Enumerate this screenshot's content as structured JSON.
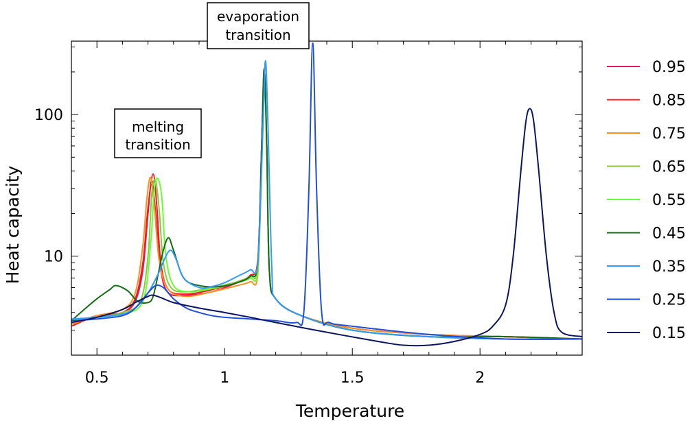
{
  "chart_data": {
    "type": "line",
    "title": "",
    "xlabel": "Temperature",
    "ylabel": "Heat capacity",
    "yscale": "log",
    "xlim": [
      0.4,
      2.4
    ],
    "ylim": [
      2.0,
      330
    ],
    "xticks": [
      {
        "value": 0.5,
        "label": "0.5"
      },
      {
        "value": 1.0,
        "label": "1"
      },
      {
        "value": 1.5,
        "label": "1.5"
      },
      {
        "value": 2.0,
        "label": "2"
      }
    ],
    "yticks": [
      {
        "value": 10,
        "label": "10"
      },
      {
        "value": 100,
        "label": "100"
      }
    ],
    "grid": false,
    "legend_position": "right",
    "annotations": [
      {
        "id": "melting",
        "lines": [
          "melting",
          "transition"
        ]
      },
      {
        "id": "evaporation",
        "lines": [
          "evaporation",
          "transition"
        ]
      }
    ],
    "series": [
      {
        "name": "0.95",
        "color": "#e8175d",
        "x": [
          0.4,
          0.5,
          0.6,
          0.65,
          0.68,
          0.7,
          0.715,
          0.73,
          0.75,
          0.78,
          0.85,
          0.95,
          1.05,
          1.1,
          1.13,
          1.145,
          1.155,
          1.165,
          1.175,
          1.2,
          1.3,
          1.5,
          1.8,
          2.1,
          2.4
        ],
        "y": [
          3.3,
          3.8,
          4.0,
          4.8,
          8.0,
          20,
          34,
          20,
          8.0,
          5.5,
          5.3,
          5.6,
          6.5,
          7.2,
          9.0,
          60,
          200,
          60,
          8.0,
          5.0,
          3.8,
          3.1,
          2.8,
          2.7,
          2.6
        ]
      },
      {
        "name": "0.85",
        "color": "#ee1c25",
        "x": [
          0.4,
          0.5,
          0.6,
          0.65,
          0.68,
          0.7,
          0.72,
          0.735,
          0.75,
          0.78,
          0.85,
          0.95,
          1.05,
          1.1,
          1.13,
          1.145,
          1.155,
          1.165,
          1.175,
          1.2,
          1.3,
          1.5,
          1.8,
          2.1,
          2.4
        ],
        "y": [
          3.2,
          3.8,
          4.0,
          5.0,
          9.0,
          22,
          38,
          22,
          9.0,
          5.8,
          5.4,
          5.8,
          6.6,
          7.3,
          9.5,
          60,
          210,
          60,
          8.0,
          5.0,
          3.8,
          3.1,
          2.8,
          2.7,
          2.6
        ]
      },
      {
        "name": "0.75",
        "color": "#f7941d",
        "x": [
          0.4,
          0.5,
          0.6,
          0.65,
          0.68,
          0.695,
          0.71,
          0.725,
          0.745,
          0.78,
          0.85,
          0.95,
          1.05,
          1.1,
          1.13,
          1.145,
          1.155,
          1.165,
          1.175,
          1.2,
          1.3,
          1.5,
          1.8,
          2.1,
          2.4
        ],
        "y": [
          3.3,
          3.8,
          4.2,
          5.5,
          12,
          25,
          36,
          22,
          9.0,
          5.8,
          5.2,
          5.6,
          6.2,
          6.6,
          7.5,
          50,
          190,
          55,
          8.0,
          5.0,
          3.8,
          3.1,
          2.8,
          2.7,
          2.6
        ]
      },
      {
        "name": "0.65",
        "color": "#8dc63f",
        "x": [
          0.4,
          0.5,
          0.6,
          0.67,
          0.7,
          0.715,
          0.73,
          0.745,
          0.76,
          0.79,
          0.85,
          0.95,
          1.05,
          1.1,
          1.13,
          1.145,
          1.155,
          1.165,
          1.175,
          1.2,
          1.3,
          1.5,
          1.8,
          2.1,
          2.4
        ],
        "y": [
          3.5,
          3.7,
          4.0,
          4.8,
          10,
          28,
          34,
          20,
          9.0,
          6.0,
          5.6,
          6.0,
          6.6,
          7.2,
          8.5,
          60,
          200,
          60,
          8.0,
          5.0,
          3.8,
          3.0,
          2.7,
          2.6,
          2.6
        ]
      },
      {
        "name": "0.55",
        "color": "#66ff33",
        "x": [
          0.4,
          0.5,
          0.6,
          0.68,
          0.71,
          0.725,
          0.74,
          0.755,
          0.77,
          0.8,
          0.86,
          0.95,
          1.05,
          1.1,
          1.13,
          1.145,
          1.155,
          1.165,
          1.175,
          1.2,
          1.3,
          1.5,
          1.8,
          2.1,
          2.4
        ],
        "y": [
          3.5,
          3.7,
          3.9,
          4.8,
          12,
          30,
          35,
          25,
          10,
          6.2,
          5.6,
          5.9,
          6.5,
          7.0,
          8.0,
          55,
          190,
          55,
          8.0,
          5.0,
          3.8,
          3.0,
          2.7,
          2.6,
          2.6
        ]
      },
      {
        "name": "0.45",
        "color": "#136b13",
        "x": [
          0.4,
          0.45,
          0.5,
          0.55,
          0.575,
          0.62,
          0.66,
          0.7,
          0.72,
          0.74,
          0.76,
          0.78,
          0.8,
          0.84,
          0.9,
          0.98,
          1.05,
          1.1,
          1.13,
          1.145,
          1.155,
          1.165,
          1.175,
          1.2,
          1.3,
          1.5,
          1.8,
          2.1,
          2.4
        ],
        "y": [
          3.5,
          4.2,
          5.0,
          5.8,
          6.2,
          5.7,
          4.8,
          4.7,
          5.2,
          7.5,
          11,
          13.5,
          11,
          7.0,
          6.2,
          6.1,
          6.5,
          7.2,
          9.0,
          60,
          210,
          60,
          8.0,
          5.0,
          3.8,
          3.0,
          2.7,
          2.7,
          2.6
        ]
      },
      {
        "name": "0.35",
        "color": "#3399ff",
        "x": [
          0.4,
          0.5,
          0.6,
          0.65,
          0.7,
          0.74,
          0.77,
          0.79,
          0.81,
          0.84,
          0.9,
          0.95,
          1.0,
          1.05,
          1.1,
          1.13,
          1.15,
          1.16,
          1.17,
          1.185,
          1.2,
          1.3,
          1.5,
          1.8,
          2.1,
          2.4
        ],
        "y": [
          3.6,
          3.7,
          3.9,
          4.3,
          5.5,
          7.5,
          10,
          11,
          9.5,
          7.0,
          6.0,
          6.1,
          6.5,
          7.2,
          8.0,
          9.0,
          80,
          240,
          80,
          8.0,
          5.0,
          3.8,
          3.0,
          2.7,
          2.6,
          2.6
        ]
      },
      {
        "name": "0.25",
        "color": "#1f4fdb",
        "x": [
          0.4,
          0.5,
          0.6,
          0.65,
          0.7,
          0.73,
          0.76,
          0.8,
          0.85,
          0.9,
          0.95,
          1.0,
          1.1,
          1.2,
          1.28,
          1.31,
          1.33,
          1.345,
          1.36,
          1.38,
          1.41,
          1.5,
          1.8,
          2.1,
          2.4
        ],
        "y": [
          3.5,
          3.6,
          3.8,
          4.3,
          5.5,
          6.2,
          6.0,
          5.0,
          4.3,
          4.0,
          3.8,
          3.7,
          3.6,
          3.5,
          3.4,
          4.0,
          30,
          320,
          30,
          4.0,
          3.4,
          3.2,
          2.8,
          2.6,
          2.6
        ]
      },
      {
        "name": "0.15",
        "color": "#0a1560",
        "x": [
          0.4,
          0.5,
          0.6,
          0.65,
          0.7,
          0.72,
          0.75,
          0.8,
          0.9,
          1.0,
          1.1,
          1.2,
          1.4,
          1.6,
          1.7,
          1.8,
          1.9,
          2.0,
          2.05,
          2.1,
          2.13,
          2.16,
          2.18,
          2.195,
          2.21,
          2.23,
          2.26,
          2.29,
          2.32,
          2.4
        ],
        "y": [
          3.4,
          3.7,
          4.2,
          4.7,
          5.2,
          5.3,
          5.1,
          4.7,
          4.3,
          4.0,
          3.7,
          3.4,
          2.9,
          2.5,
          2.35,
          2.35,
          2.5,
          2.8,
          3.2,
          4.5,
          10,
          40,
          90,
          110,
          90,
          40,
          10,
          4.0,
          2.9,
          2.7
        ]
      }
    ]
  }
}
